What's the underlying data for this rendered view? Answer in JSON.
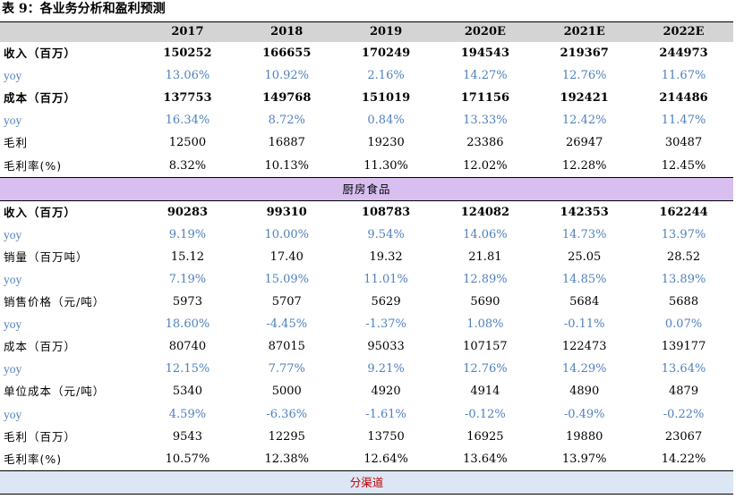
{
  "title": "表 9：各业务分析和盈利预测",
  "header": {
    "blank": "",
    "years": [
      "2017",
      "2018",
      "2019",
      "2020E",
      "2021E",
      "2022E"
    ]
  },
  "rows": [
    {
      "label": "收入（百万）",
      "values": [
        "150252",
        "166655",
        "170249",
        "194543",
        "219367",
        "244973"
      ]
    },
    {
      "label": "yoy",
      "values": [
        "13.06%",
        "10.92%",
        "2.16%",
        "14.27%",
        "12.76%",
        "11.67%"
      ]
    },
    {
      "label": "成本（百万）",
      "values": [
        "137753",
        "149768",
        "151019",
        "171156",
        "192421",
        "214486"
      ]
    },
    {
      "label": "yoy",
      "values": [
        "16.34%",
        "8.72%",
        "0.84%",
        "13.33%",
        "12.42%",
        "11.47%"
      ]
    },
    {
      "label": "毛利",
      "values": [
        "12500",
        "16887",
        "19230",
        "23386",
        "26947",
        "30487"
      ]
    },
    {
      "label": "毛利率(%)",
      "values": [
        "8.32%",
        "10.13%",
        "11.30%",
        "12.02%",
        "12.28%",
        "12.45%"
      ]
    },
    {
      "section": "厨房食品"
    },
    {
      "label": "收入（百万）",
      "values": [
        "90283",
        "99310",
        "108783",
        "124082",
        "142353",
        "162244"
      ]
    },
    {
      "label": "yoy",
      "values": [
        "9.19%",
        "10.00%",
        "9.54%",
        "14.06%",
        "14.73%",
        "13.97%"
      ]
    },
    {
      "label": "销量（百万吨）",
      "values": [
        "15.12",
        "17.40",
        "19.32",
        "21.81",
        "25.05",
        "28.52"
      ]
    },
    {
      "label": "yoy",
      "values": [
        "7.19%",
        "15.09%",
        "11.01%",
        "12.89%",
        "14.85%",
        "13.89%"
      ]
    },
    {
      "label": "销售价格（元/吨）",
      "values": [
        "5973",
        "5707",
        "5629",
        "5690",
        "5684",
        "5688"
      ]
    },
    {
      "label": "yoy",
      "values": [
        "18.60%",
        "-4.45%",
        "-1.37%",
        "1.08%",
        "-0.11%",
        "0.07%"
      ]
    },
    {
      "label": "成本（百万）",
      "values": [
        "80740",
        "87015",
        "95033",
        "107157",
        "122473",
        "139177"
      ]
    },
    {
      "label": "yoy",
      "values": [
        "12.15%",
        "7.77%",
        "9.21%",
        "12.76%",
        "14.29%",
        "13.64%"
      ]
    },
    {
      "label": "单位成本（元/吨）",
      "values": [
        "5340",
        "5000",
        "4920",
        "4914",
        "4890",
        "4879"
      ]
    },
    {
      "label": "yoy",
      "values": [
        "4.59%",
        "-6.36%",
        "-1.61%",
        "-0.12%",
        "-0.49%",
        "-0.22%"
      ]
    },
    {
      "label": "毛利（百万）",
      "values": [
        "9543",
        "12295",
        "13750",
        "16925",
        "19880",
        "23067"
      ]
    },
    {
      "label": "毛利率(%)",
      "values": [
        "10.57%",
        "12.38%",
        "12.64%",
        "13.64%",
        "13.97%",
        "14.22%"
      ]
    },
    {
      "section": "分渠道"
    }
  ],
  "colors": {
    "header_bg": "#d4d4d4",
    "section_bg": "#d8bff0",
    "section2_bg": "#dde6f5",
    "yoy_text": "#4f81bd",
    "channel_text": "#c00000"
  }
}
